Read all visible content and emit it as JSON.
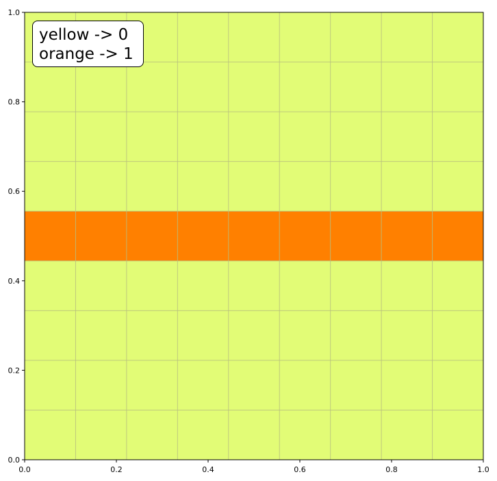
{
  "chart_data": {
    "type": "heatmap",
    "xlim": [
      0.0,
      1.0
    ],
    "ylim": [
      0.0,
      1.0
    ],
    "grid": true,
    "grid_columns": 9,
    "grid_rows": 9,
    "cmap_values": {
      "yellow": 0,
      "orange": 1
    },
    "colors": {
      "yellow": "#e2fc76",
      "orange": "#ff8000",
      "grid": "#b8c07f",
      "axis": "#000000"
    },
    "rows": [
      [
        0,
        0,
        0,
        0,
        0,
        0,
        0,
        0,
        0
      ],
      [
        0,
        0,
        0,
        0,
        0,
        0,
        0,
        0,
        0
      ],
      [
        0,
        0,
        0,
        0,
        0,
        0,
        0,
        0,
        0
      ],
      [
        0,
        0,
        0,
        0,
        0,
        0,
        0,
        0,
        0
      ],
      [
        1,
        1,
        1,
        1,
        1,
        1,
        1,
        1,
        1
      ],
      [
        0,
        0,
        0,
        0,
        0,
        0,
        0,
        0,
        0
      ],
      [
        0,
        0,
        0,
        0,
        0,
        0,
        0,
        0,
        0
      ],
      [
        0,
        0,
        0,
        0,
        0,
        0,
        0,
        0,
        0
      ],
      [
        0,
        0,
        0,
        0,
        0,
        0,
        0,
        0,
        0
      ]
    ],
    "x_ticks": [
      "0.0",
      "0.2",
      "0.4",
      "0.6",
      "0.8",
      "1.0"
    ],
    "y_ticks": [
      "0.0",
      "0.2",
      "0.4",
      "0.6",
      "0.8",
      "1.0"
    ],
    "legend_position": "top-left",
    "annotation": [
      "yellow -> 0",
      "orange -> 1"
    ]
  }
}
